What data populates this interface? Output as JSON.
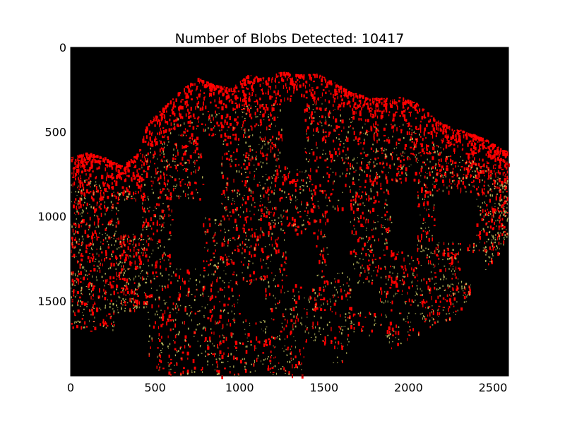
{
  "chart_data": {
    "type": "heatmap",
    "title": "Number of Blobs Detected: 10417",
    "xlabel": "",
    "ylabel": "",
    "xlim": [
      0,
      2592
    ],
    "ylim": [
      1944,
      0
    ],
    "y_axis_inverted": true,
    "x_ticks": [
      0,
      500,
      1000,
      1500,
      2000,
      2500
    ],
    "y_ticks": [
      0,
      500,
      1000,
      1500
    ],
    "x_tick_labels": [
      "0",
      "500",
      "1000",
      "1500",
      "2000",
      "2500"
    ],
    "y_tick_labels": [
      "0",
      "500",
      "1000",
      "1500"
    ],
    "grid": false,
    "background_color": "#000000",
    "blob_color": "#ff0000",
    "edge_color": "#c8c864",
    "blob_count": 10417
  }
}
